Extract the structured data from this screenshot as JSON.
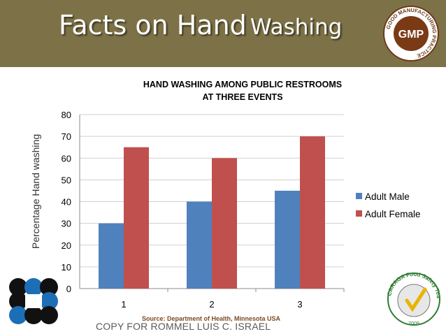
{
  "slide": {
    "title_part1": "Facts on Hand",
    "title_part2": "Washing",
    "gmp_seal": {
      "center": "GMP",
      "ring": "GOOD MANUFACTURING PRACTICE"
    },
    "source": "Source: Department of Health, Minnesota USA",
    "copy": "COPY FOR ROMMEL LUIS C. ISRAEL",
    "team_logo": {
      "ring": "CARAGA Food Safety Team",
      "year": "2009"
    }
  },
  "colors": {
    "banner": "#7d7247",
    "male": "#4f81bd",
    "female": "#c0504d"
  },
  "chart_data": {
    "type": "bar",
    "title_line1": "HAND WASHING AMONG PUBLIC RESTROOMS",
    "title_line2": "AT THREE EVENTS",
    "categories": [
      "1",
      "2",
      "3"
    ],
    "series": [
      {
        "name": "Adult Male",
        "values": [
          30,
          40,
          45
        ]
      },
      {
        "name": "Adult Female",
        "values": [
          65,
          60,
          70
        ]
      }
    ],
    "ylabel": "Percentage Hand washing",
    "xlabel": "",
    "ylim": [
      0,
      80
    ],
    "yticks": [
      "0",
      "10",
      "20",
      "30",
      "40",
      "50",
      "60",
      "70",
      "80"
    ],
    "grid": true,
    "legend_position": "right"
  }
}
